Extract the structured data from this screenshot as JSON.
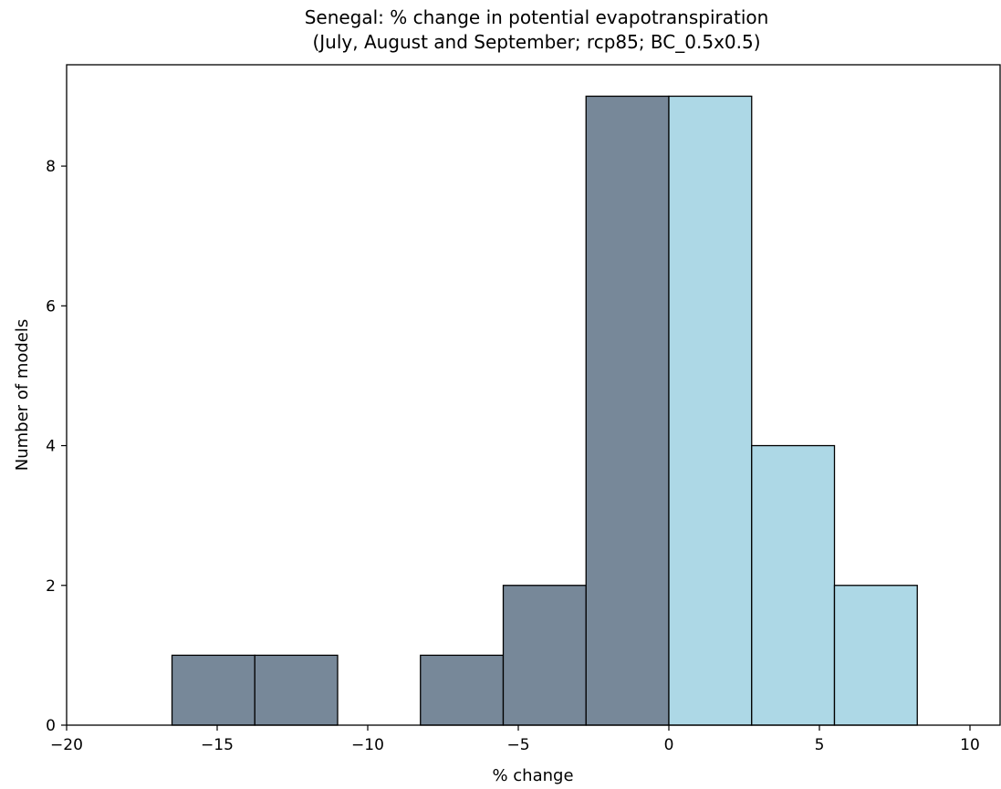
{
  "chart_data": {
    "type": "bar",
    "title": "Senegal: % change in potential evapotranspiration",
    "subtitle": "(July, August and September; rcp85; BC_0.5x0.5)",
    "xlabel": "% change",
    "ylabel": "Number of models",
    "xlim": [
      -20,
      11
    ],
    "ylim": [
      0,
      9.45
    ],
    "grid": false,
    "x_ticks": [
      -20,
      -15,
      -10,
      -5,
      0,
      5,
      10
    ],
    "x_tick_labels": [
      "−20",
      "−15",
      "−10",
      "−5",
      "0",
      "5",
      "10"
    ],
    "y_ticks": [
      0,
      2,
      4,
      6,
      8
    ],
    "y_tick_labels": [
      "0",
      "2",
      "4",
      "6",
      "8"
    ],
    "colors": {
      "negative": "#778899",
      "positive": "#add8e6",
      "edge": "#000000"
    },
    "bins": [
      {
        "x0": -16.5,
        "x1": -13.75,
        "count": 1
      },
      {
        "x0": -13.75,
        "x1": -11.0,
        "count": 1
      },
      {
        "x0": -8.25,
        "x1": -5.5,
        "count": 1
      },
      {
        "x0": -5.5,
        "x1": -2.75,
        "count": 2
      },
      {
        "x0": -2.75,
        "x1": 0.0,
        "count": 9
      },
      {
        "x0": 0.0,
        "x1": 2.75,
        "count": 9
      },
      {
        "x0": 2.75,
        "x1": 5.5,
        "count": 4
      },
      {
        "x0": 5.5,
        "x1": 8.25,
        "count": 2
      }
    ]
  }
}
